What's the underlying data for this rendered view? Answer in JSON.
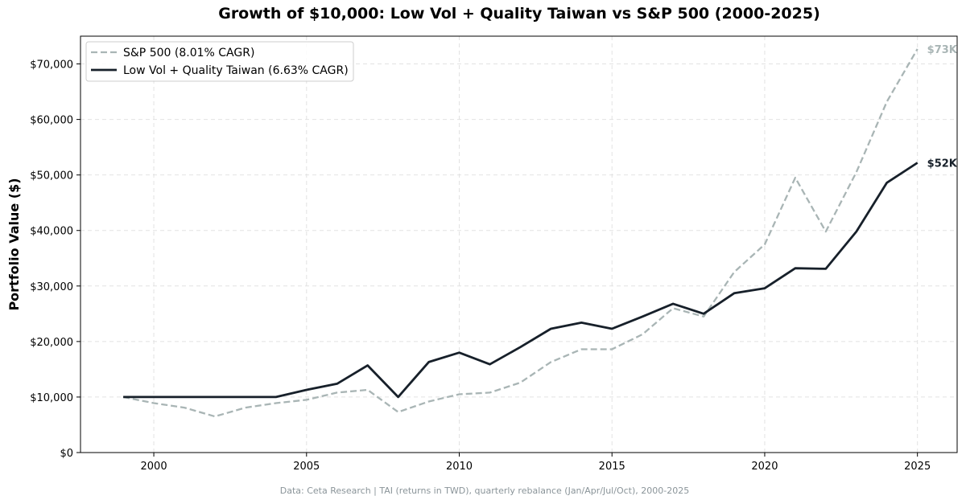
{
  "chart_data": {
    "type": "line",
    "title": "Growth of $10,000: Low Vol + Quality Taiwan vs S&P 500 (2000-2025)",
    "ylabel": "Portfolio Value ($)",
    "xlabel": "",
    "xlim": [
      1997.6,
      2026.3
    ],
    "ylim": [
      0,
      75000
    ],
    "xticks": [
      2000,
      2005,
      2010,
      2015,
      2020,
      2025
    ],
    "yticks": [
      0,
      10000,
      20000,
      30000,
      40000,
      50000,
      60000,
      70000
    ],
    "ytick_labels": [
      "$0",
      "$10,000",
      "$20,000",
      "$30,000",
      "$40,000",
      "$50,000",
      "$60,000",
      "$70,000"
    ],
    "grid": true,
    "legend": "top-left",
    "x": [
      1999,
      2000,
      2001,
      2002,
      2003,
      2004,
      2005,
      2006,
      2007,
      2008,
      2009,
      2010,
      2011,
      2012,
      2013,
      2014,
      2015,
      2016,
      2017,
      2018,
      2019,
      2020,
      2021,
      2022,
      2023,
      2024,
      2025
    ],
    "series": [
      {
        "name": "S&P 500 (8.01% CAGR)",
        "color": "#a9b5b5",
        "style": "dashed",
        "end_label": "$73K",
        "values": [
          10000,
          8900,
          8100,
          6500,
          8100,
          8900,
          9500,
          10800,
          11300,
          7300,
          9200,
          10500,
          10800,
          12600,
          16300,
          18600,
          18600,
          21300,
          26000,
          24500,
          32500,
          37500,
          49500,
          39800,
          50500,
          63200,
          72700
        ]
      },
      {
        "name": "Low Vol + Quality Taiwan (6.63% CAGR)",
        "color": "#17202a",
        "style": "solid",
        "end_label": "$52K",
        "values": [
          10000,
          10000,
          10000,
          10000,
          10000,
          10000,
          11300,
          12400,
          15700,
          10000,
          16300,
          18000,
          15900,
          19000,
          22300,
          23400,
          22300,
          24500,
          26800,
          25000,
          28700,
          29600,
          33200,
          33100,
          39800,
          48600,
          52200
        ]
      }
    ]
  },
  "footer": "Data: Ceta Research | TAI (returns in TWD), quarterly rebalance (Jan/Apr/Jul/Oct), 2000-2025"
}
